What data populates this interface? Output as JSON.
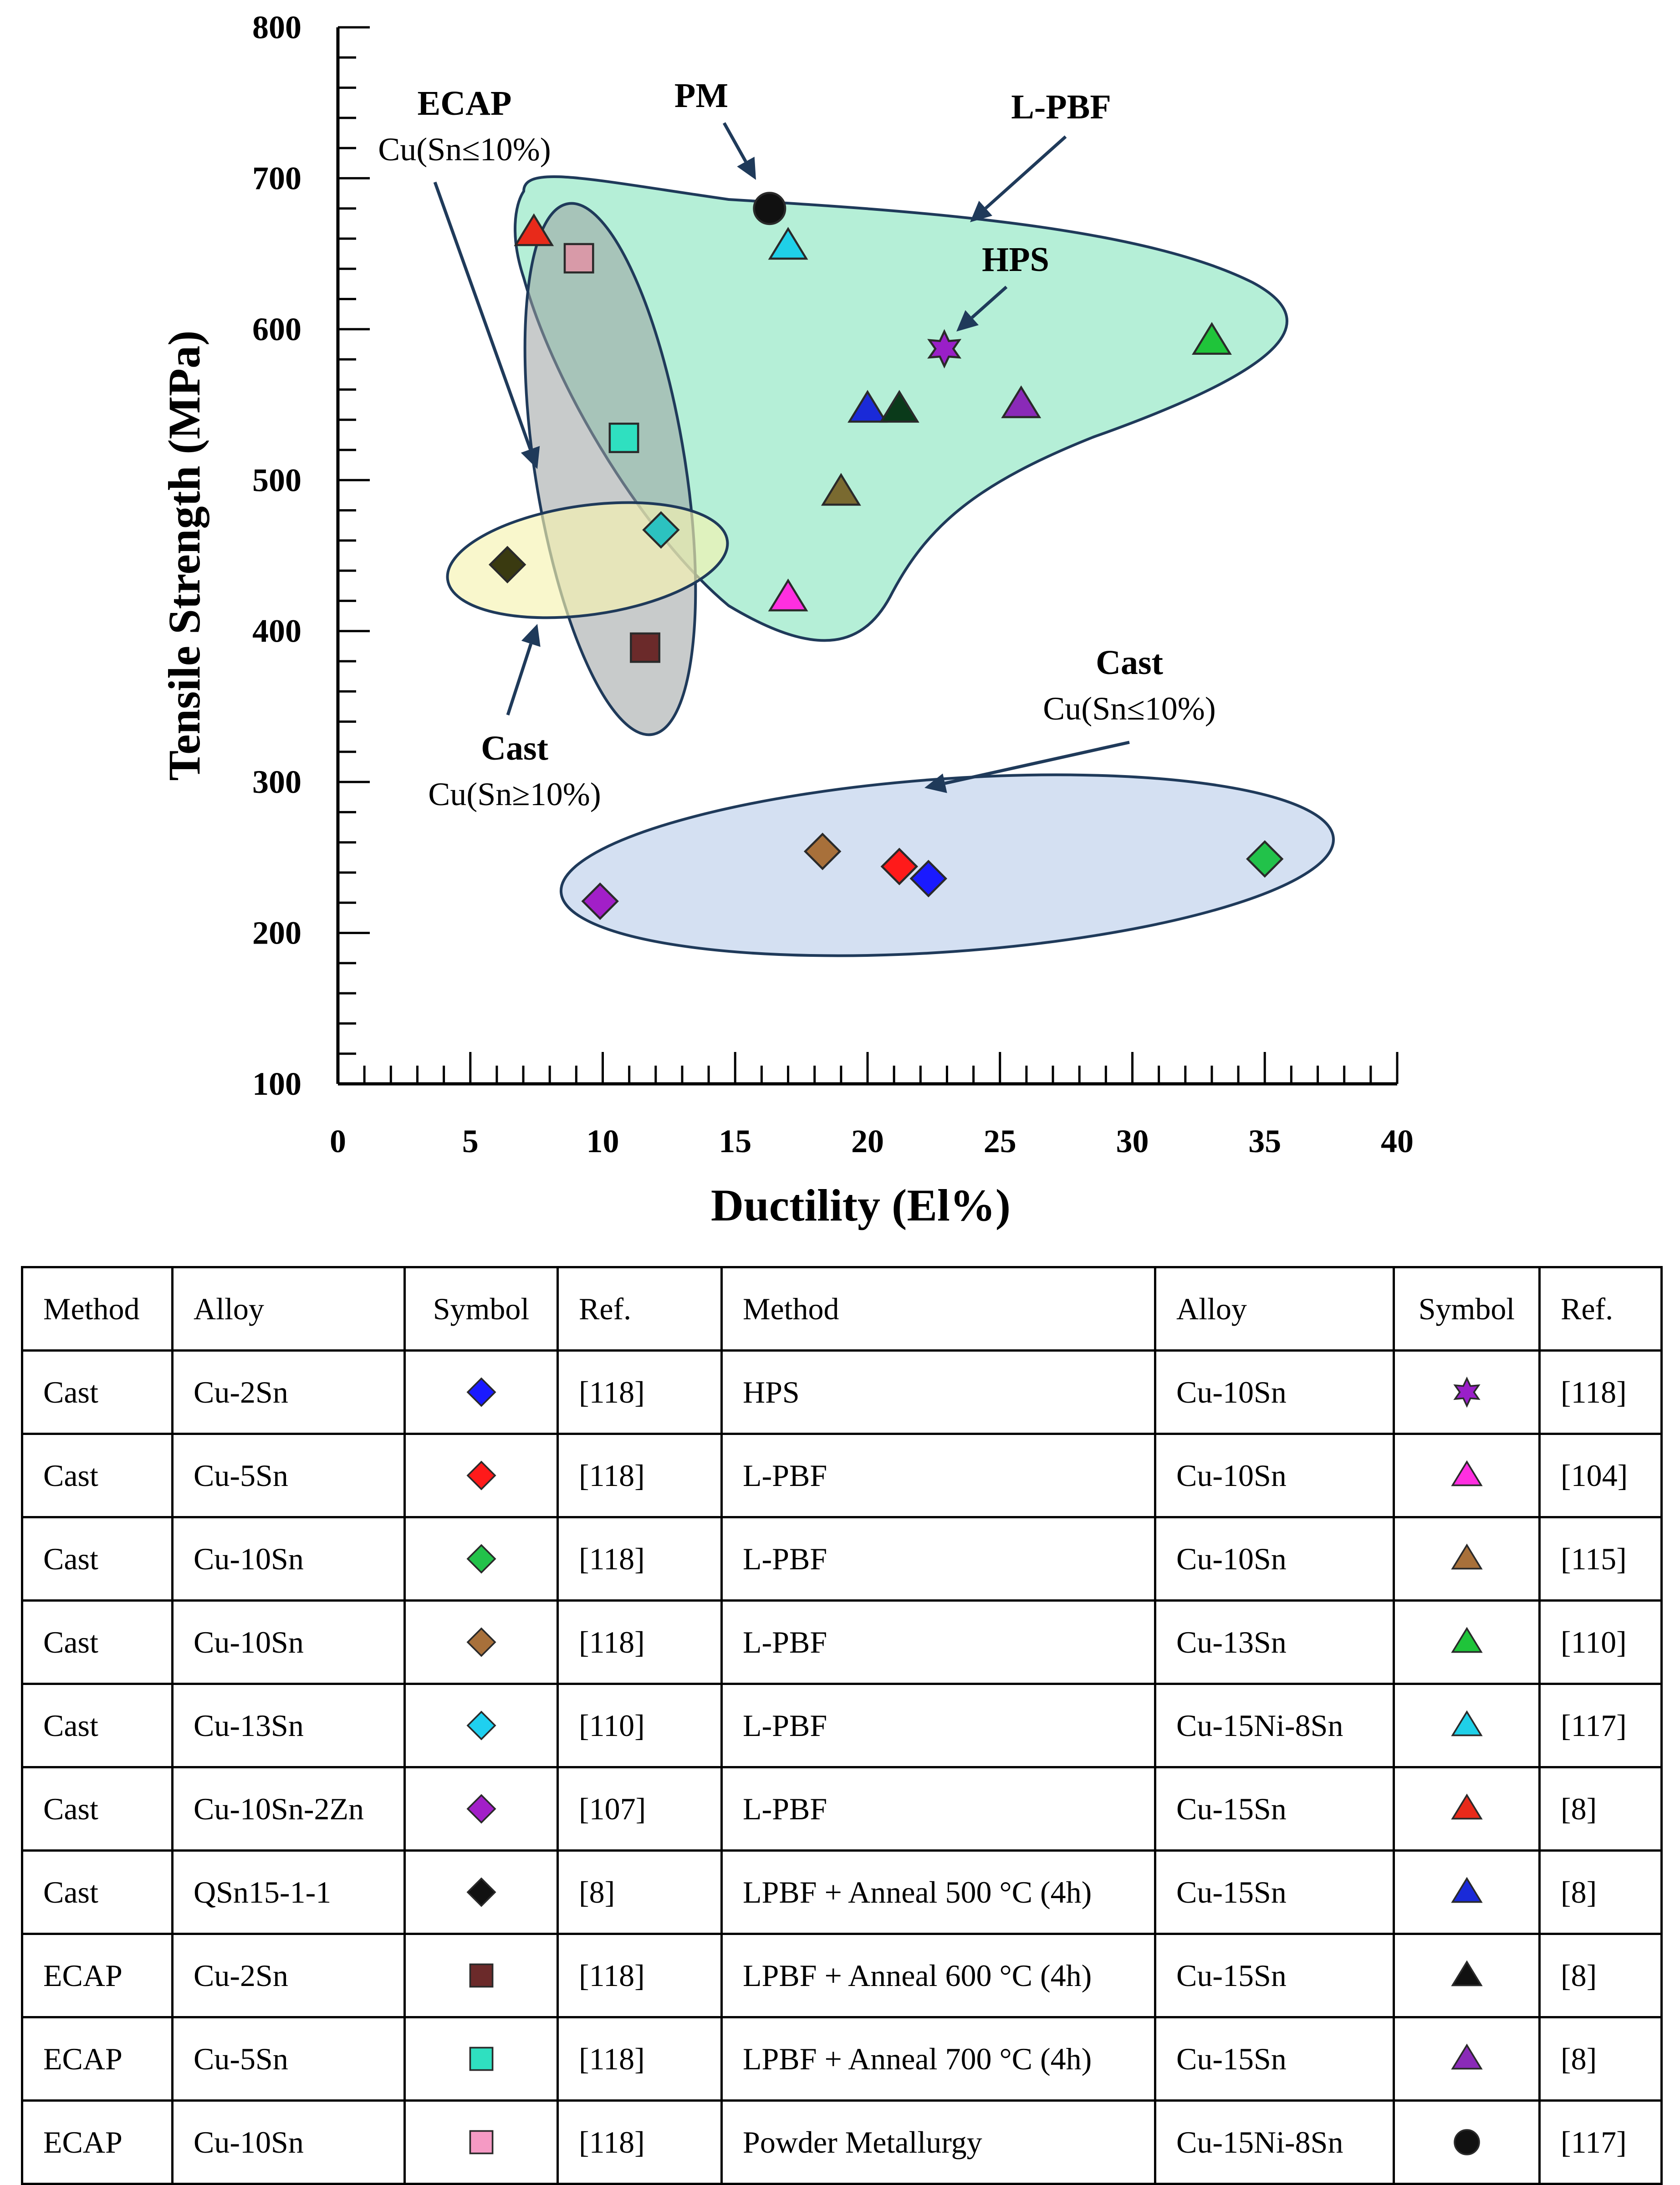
{
  "chart_data": {
    "type": "scatter",
    "xlabel": "Ductility (El%)",
    "ylabel": "Tensile Strength (MPa)",
    "xlim": [
      0,
      40
    ],
    "ylim": [
      100,
      800
    ],
    "xticks": [
      0,
      5,
      10,
      15,
      20,
      25,
      30,
      35,
      40
    ],
    "yticks": [
      100,
      200,
      300,
      400,
      500,
      600,
      700,
      800
    ],
    "points": [
      {
        "method": "Cast",
        "alloy": "Cu-2Sn",
        "marker": "diamond",
        "color": "#1a1aff",
        "x": 22.3,
        "y": 236
      },
      {
        "method": "Cast",
        "alloy": "Cu-5Sn",
        "marker": "diamond",
        "color": "#ff1a1a",
        "x": 21.2,
        "y": 244
      },
      {
        "method": "Cast",
        "alloy": "Cu-10Sn",
        "marker": "diamond",
        "color": "#22c24a",
        "x": 35.0,
        "y": 249
      },
      {
        "method": "Cast",
        "alloy": "Cu-10Sn",
        "marker": "diamond",
        "color": "#a8703a",
        "x": 18.3,
        "y": 254
      },
      {
        "method": "Cast",
        "alloy": "Cu-13Sn",
        "marker": "diamond",
        "color": "#2cc2c0",
        "x": 12.2,
        "y": 467
      },
      {
        "method": "Cast",
        "alloy": "Cu-10Sn-2Zn",
        "marker": "diamond",
        "color": "#a21fc8",
        "x": 9.9,
        "y": 221
      },
      {
        "method": "Cast",
        "alloy": "QSn15-1-1",
        "marker": "diamond",
        "color": "#3a3a10",
        "x": 6.4,
        "y": 444
      },
      {
        "method": "ECAP",
        "alloy": "Cu-2Sn",
        "marker": "square",
        "color": "#6b2a2a",
        "x": 11.6,
        "y": 389
      },
      {
        "method": "ECAP",
        "alloy": "Cu-5Sn",
        "marker": "square",
        "color": "#2fe0c0",
        "x": 10.8,
        "y": 528
      },
      {
        "method": "ECAP",
        "alloy": "Cu-10Sn",
        "marker": "square",
        "color": "#d89aa8",
        "x": 9.1,
        "y": 647
      },
      {
        "method": "HPS",
        "alloy": "Cu-10Sn",
        "marker": "star",
        "color": "#9a1fc8",
        "x": 22.9,
        "y": 587
      },
      {
        "method": "L-PBF",
        "alloy": "Cu-10Sn",
        "marker": "triangle",
        "color": "#ff2fe0",
        "x": 17.0,
        "y": 422
      },
      {
        "method": "L-PBF",
        "alloy": "Cu-10Sn",
        "marker": "triangle",
        "color": "#7a6a30",
        "x": 19.0,
        "y": 492
      },
      {
        "method": "L-PBF",
        "alloy": "Cu-13Sn",
        "marker": "triangle",
        "color": "#1fc43a",
        "x": 33.0,
        "y": 592
      },
      {
        "method": "L-PBF",
        "alloy": "Cu-15Ni-8Sn",
        "marker": "triangle",
        "color": "#1fd0e8",
        "x": 17.0,
        "y": 655
      },
      {
        "method": "L-PBF",
        "alloy": "Cu-15Sn",
        "marker": "triangle",
        "color": "#e82a1a",
        "x": 7.4,
        "y": 664
      },
      {
        "method": "LPBF + Anneal 500 °C  (4h)",
        "alloy": "Cu-15Sn",
        "marker": "triangle",
        "color": "#1a2ad8",
        "x": 20.0,
        "y": 547
      },
      {
        "method": "LPBF + Anneal 600 °C  (4h)",
        "alloy": "Cu-15Sn",
        "marker": "triangle",
        "color": "#0a3a1a",
        "x": 21.2,
        "y": 547
      },
      {
        "method": "LPBF + Anneal 700 °C  (4h)",
        "alloy": "Cu-15Sn",
        "marker": "triangle",
        "color": "#8a2ab8",
        "x": 25.8,
        "y": 550
      },
      {
        "method": "Powder Metallurgy",
        "alloy": "Cu-15Ni-8Sn",
        "marker": "circle",
        "color": "#111111",
        "x": 16.3,
        "y": 680
      }
    ],
    "annotations": [
      {
        "id": "pm",
        "lines": [
          {
            "text": "PM",
            "bold": true
          }
        ]
      },
      {
        "id": "lpbf",
        "lines": [
          {
            "text": "L-PBF",
            "bold": true
          }
        ]
      },
      {
        "id": "hps",
        "lines": [
          {
            "text": "HPS",
            "bold": true
          }
        ]
      },
      {
        "id": "ecap",
        "lines": [
          {
            "text": "ECAP",
            "bold": true
          },
          {
            "text": "Cu(Sn≤10%)",
            "bold": false
          }
        ]
      },
      {
        "id": "cast-high",
        "lines": [
          {
            "text": "Cast",
            "bold": true
          },
          {
            "text": "Cu(Sn≥10%)",
            "bold": false
          }
        ]
      },
      {
        "id": "cast-low",
        "lines": [
          {
            "text": "Cast",
            "bold": true
          },
          {
            "text": "Cu(Sn≤10%)",
            "bold": false
          }
        ]
      }
    ],
    "regions": [
      {
        "name": "L-PBF region",
        "fill": "#a8ecd0",
        "stroke": "#1f3a5a"
      },
      {
        "name": "ECAP region",
        "fill": "#9aa0a0",
        "stroke": "#1f3a5a"
      },
      {
        "name": "Cast Cu(Sn≥10%) region",
        "fill": "#f6f3b0",
        "stroke": "#1f3a5a"
      },
      {
        "name": "Cast Cu(Sn≤10%) region",
        "fill": "#d4e0f2",
        "stroke": "#1f3a5a"
      }
    ]
  },
  "legend_table": {
    "headers": [
      "Method",
      "Alloy",
      "Symbol",
      "Ref.",
      "Method",
      "Alloy",
      "Symbol",
      "Ref."
    ],
    "rows": [
      {
        "left": {
          "method": "Cast",
          "alloy": "Cu-2Sn",
          "marker": "diamond",
          "color": "#1a1aff",
          "ref": "[118]"
        },
        "right": {
          "method": "HPS",
          "alloy": "Cu-10Sn",
          "marker": "star",
          "color": "#9a1fc8",
          "ref": "[118]"
        }
      },
      {
        "left": {
          "method": "Cast",
          "alloy": "Cu-5Sn",
          "marker": "diamond",
          "color": "#ff1a1a",
          "ref": "[118]"
        },
        "right": {
          "method": "L-PBF",
          "alloy": "Cu-10Sn",
          "marker": "triangle",
          "color": "#ff2fe0",
          "ref": "[104]"
        }
      },
      {
        "left": {
          "method": "Cast",
          "alloy": "Cu-10Sn",
          "marker": "diamond",
          "color": "#22c24a",
          "ref": "[118]"
        },
        "right": {
          "method": "L-PBF",
          "alloy": "Cu-10Sn",
          "marker": "triangle",
          "color": "#a8703a",
          "ref": "[115]"
        }
      },
      {
        "left": {
          "method": "Cast",
          "alloy": "Cu-10Sn",
          "marker": "diamond",
          "color": "#a8703a",
          "ref": "[118]"
        },
        "right": {
          "method": "L-PBF",
          "alloy": "Cu-13Sn",
          "marker": "triangle",
          "color": "#1fc43a",
          "ref": "[110]"
        }
      },
      {
        "left": {
          "method": "Cast",
          "alloy": "Cu-13Sn",
          "marker": "diamond",
          "color": "#1fd0f0",
          "ref": "[110]"
        },
        "right": {
          "method": "L-PBF",
          "alloy": "Cu-15Ni-8Sn",
          "marker": "triangle",
          "color": "#1fd0e8",
          "ref": "[117]"
        }
      },
      {
        "left": {
          "method": "Cast",
          "alloy": "Cu-10Sn-2Zn",
          "marker": "diamond",
          "color": "#a21fc8",
          "ref": "[107]"
        },
        "right": {
          "method": "L-PBF",
          "alloy": "Cu-15Sn",
          "marker": "triangle",
          "color": "#e82a1a",
          "ref": "[8]"
        }
      },
      {
        "left": {
          "method": "Cast",
          "alloy": "QSn15-1-1",
          "marker": "diamond",
          "color": "#111111",
          "ref": "[8]"
        },
        "right": {
          "method": "LPBF + Anneal 500 °C  (4h)",
          "alloy": "Cu-15Sn",
          "marker": "triangle",
          "color": "#1a2ad8",
          "ref": "[8]"
        }
      },
      {
        "left": {
          "method": "ECAP",
          "alloy": "Cu-2Sn",
          "marker": "square",
          "color": "#6b2a2a",
          "ref": "[118]"
        },
        "right": {
          "method": "LPBF + Anneal 600 °C  (4h)",
          "alloy": "Cu-15Sn",
          "marker": "triangle",
          "color": "#111111",
          "ref": "[8]"
        }
      },
      {
        "left": {
          "method": "ECAP",
          "alloy": "Cu-5Sn",
          "marker": "square",
          "color": "#2fe0c0",
          "ref": "[118]"
        },
        "right": {
          "method": "LPBF + Anneal 700 °C  (4h)",
          "alloy": "Cu-15Sn",
          "marker": "triangle",
          "color": "#8a2ab8",
          "ref": "[8]"
        }
      },
      {
        "left": {
          "method": "ECAP",
          "alloy": "Cu-10Sn",
          "marker": "square",
          "color": "#f59ac4",
          "ref": "[118]"
        },
        "right": {
          "method": "Powder Metallurgy",
          "alloy": "Cu-15Ni-8Sn",
          "marker": "circle",
          "color": "#111111",
          "ref": "[117]"
        }
      }
    ]
  }
}
